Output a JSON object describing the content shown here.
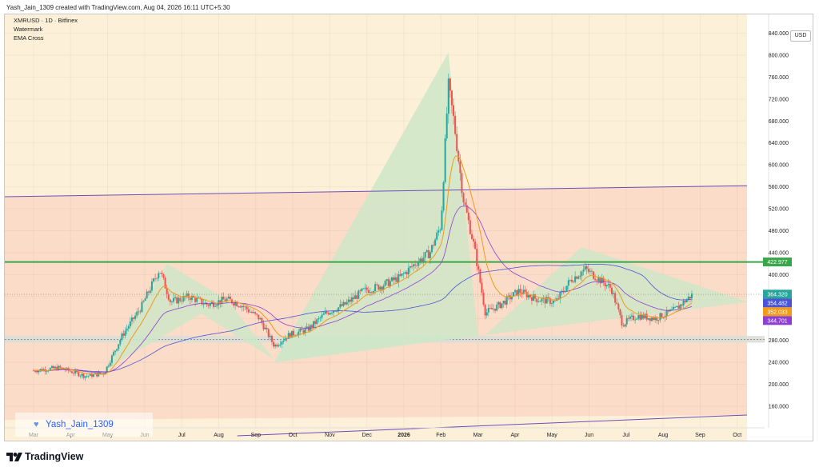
{
  "header": {
    "attribution": "Yash_Jain_1309 created with TradingView.com, Aug 04, 2026 16:11 UTC+5:30"
  },
  "legend": {
    "symbol": "XMRUSD · 1D · Bitfinex",
    "indicator_1": "Watermark",
    "indicator_2": "EMA Cross"
  },
  "watermark": {
    "text": "Yash_Jain_1309"
  },
  "footer": {
    "logo_text": "TradingView"
  },
  "colors": {
    "background_upper": "#fdf0d8",
    "background_lower": "#fbdcc8",
    "triangle_fill": "#cfe6c8",
    "support_band": "#d9ded6",
    "resistance_line": "#3aa64a",
    "channel_line": "#6b4fbb",
    "ema_fast": "#f29a1a",
    "ema_slow": "#8e3fd0",
    "ma_long": "#4a55d6",
    "up_candle": "#26a69a",
    "down_candle": "#ef5350"
  },
  "chart_data": {
    "type": "candlestick",
    "symbol": "XMRUSD",
    "timeframe": "1D",
    "exchange": "Bitfinex",
    "currency": "USD",
    "y_axis": {
      "ticks": [
        "840.000",
        "800.000",
        "760.000",
        "720.000",
        "680.000",
        "640.000",
        "600.000",
        "560.000",
        "520.000",
        "480.000",
        "440.000",
        "400.000",
        "360.000",
        "320.000",
        "280.000",
        "240.000",
        "200.000",
        "160.000"
      ],
      "ylim": [
        110,
        850
      ]
    },
    "x_axis": {
      "ticks": [
        "Mar",
        "Apr",
        "May",
        "Jun",
        "Jul",
        "Aug",
        "Sep",
        "Oct",
        "Nov",
        "Dec",
        "2026",
        "Feb",
        "Mar",
        "Apr",
        "May",
        "Jun",
        "Jul",
        "Aug",
        "Sep",
        "Oct"
      ]
    },
    "price_labels": [
      {
        "value": "422.977",
        "color": "#3aa64a"
      },
      {
        "value": "364.320",
        "color": "#26a69a"
      },
      {
        "value": "354.482",
        "color": "#4a55d6"
      },
      {
        "value": "352.033",
        "color": "#f29a1a"
      },
      {
        "value": "344.701",
        "color": "#8e3fd0"
      }
    ],
    "horizontal_resistance": 422.977,
    "support_zone": [
      276,
      288
    ],
    "series_close": [
      [
        "Mar",
        225
      ],
      [
        "Apr",
        215
      ],
      [
        "May",
        330
      ],
      [
        "May",
        410
      ],
      [
        "Jun",
        355
      ],
      [
        "Jun",
        340
      ],
      [
        "Jul",
        345
      ],
      [
        "Jul",
        335
      ],
      [
        "Aug",
        265
      ],
      [
        "Sep",
        300
      ],
      [
        "Sep",
        330
      ],
      [
        "Oct",
        340
      ],
      [
        "Nov",
        360
      ],
      [
        "Nov",
        400
      ],
      [
        "Dec",
        420
      ],
      [
        "Dec",
        440
      ],
      [
        "2026",
        480
      ],
      [
        "2026",
        740
      ],
      [
        "2026",
        620
      ],
      [
        "2026",
        500
      ],
      [
        "Feb",
        370
      ],
      [
        "Feb",
        320
      ],
      [
        "Mar",
        350
      ],
      [
        "Apr",
        360
      ],
      [
        "Apr",
        340
      ],
      [
        "May",
        390
      ],
      [
        "May",
        410
      ],
      [
        "Jun",
        395
      ],
      [
        "Jun",
        320
      ],
      [
        "Jul",
        310
      ],
      [
        "Jul",
        335
      ],
      [
        "Aug",
        364
      ]
    ]
  }
}
